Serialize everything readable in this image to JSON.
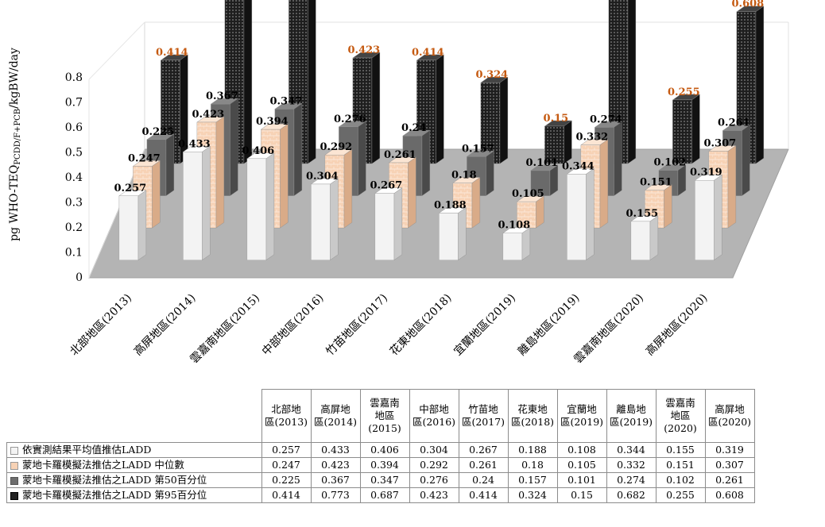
{
  "chart_data": {
    "type": "bar",
    "subtype": "3d-clustered-depth",
    "ylabel": "pg WHO-TEQ",
    "ylabel_sub": "PCDD/F+PCB",
    "ylabel_unit": "/kgBW/day",
    "yticks": [
      "0",
      "0.1",
      "0.2",
      "0.3",
      "0.4",
      "0.5",
      "0.6",
      "0.7",
      "0.8"
    ],
    "ylim": [
      0,
      0.8
    ],
    "categories": [
      "北部地區(2013)",
      "高屏地區(2014)",
      "雲嘉南地區(2015)",
      "中部地區(2016)",
      "竹苗地區(2017)",
      "花東地區(2018)",
      "宜蘭地區(2019)",
      "離島地區(2019)",
      "雲嘉南地區(2020)",
      "高屏地區(2020)"
    ],
    "table_headers": [
      [
        "北部地",
        "區(2013)"
      ],
      [
        "高屏地",
        "區(2014)"
      ],
      [
        "雲嘉南",
        "地區",
        "(2015)"
      ],
      [
        "中部地",
        "區(2016)"
      ],
      [
        "竹苗地",
        "區(2017)"
      ],
      [
        "花東地",
        "區(2018)"
      ],
      [
        "宜蘭地",
        "區(2019)"
      ],
      [
        "離島地",
        "區(2019)"
      ],
      [
        "雲嘉南",
        "地區",
        "(2020)"
      ],
      [
        "高屏地",
        "區(2020)"
      ]
    ],
    "series": [
      {
        "name": "依實測結果平均值推估LADD",
        "color": "#f4f4f4",
        "values": [
          0.257,
          0.433,
          0.406,
          0.304,
          0.267,
          0.188,
          0.108,
          0.344,
          0.155,
          0.319
        ]
      },
      {
        "name": "蒙地卡羅模擬法推估之LADD 中位數",
        "color": "#f7d2b5",
        "values": [
          0.247,
          0.423,
          0.394,
          0.292,
          0.261,
          0.18,
          0.105,
          0.332,
          0.151,
          0.307
        ]
      },
      {
        "name": "蒙地卡羅模擬法推估之LADD 第50百分位",
        "color": "#6e6e6e",
        "values": [
          0.225,
          0.367,
          0.347,
          0.276,
          0.24,
          0.157,
          0.101,
          0.274,
          0.102,
          0.261
        ]
      },
      {
        "name": "蒙地卡羅模擬法推估之LADD 第95百分位",
        "color": "#2a2a2a",
        "values": [
          0.414,
          0.773,
          0.687,
          0.423,
          0.414,
          0.324,
          0.15,
          0.682,
          0.255,
          0.608
        ]
      }
    ],
    "label_colors": [
      "#000000",
      "#000000",
      "#000000",
      "#c55a11"
    ],
    "floor_color": "#b4b4b4",
    "grid": false,
    "legend": "table"
  }
}
